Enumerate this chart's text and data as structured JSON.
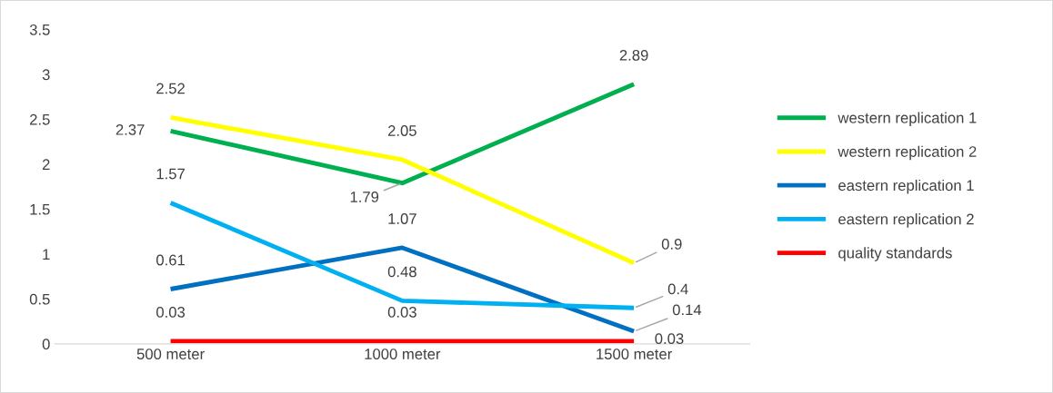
{
  "chart_data": {
    "type": "line",
    "categories": [
      "500 meter",
      "1000 meter",
      "1500 meter"
    ],
    "series": [
      {
        "name": "western replication 1",
        "color": "#00b050",
        "values": [
          2.37,
          1.79,
          2.89
        ]
      },
      {
        "name": "western replication 2",
        "color": "#ffff00",
        "values": [
          2.52,
          2.05,
          0.9
        ]
      },
      {
        "name": "eastern replication 1",
        "color": "#0070c0",
        "values": [
          0.61,
          1.07,
          0.14
        ]
      },
      {
        "name": "eastern replication 2",
        "color": "#00b0f0",
        "values": [
          1.57,
          0.48,
          0.4
        ]
      },
      {
        "name": "quality standards",
        "color": "#ff0000",
        "values": [
          0.03,
          0.03,
          0.03
        ]
      }
    ],
    "ylim": [
      0,
      3.5
    ],
    "yticks": [
      0,
      0.5,
      1,
      1.5,
      2,
      2.5,
      3,
      3.5
    ],
    "grid": false,
    "legend": "right",
    "data_labels": true,
    "marker": "none",
    "line_style": "solid"
  }
}
